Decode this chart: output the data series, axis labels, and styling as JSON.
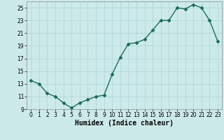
{
  "x": [
    0,
    1,
    2,
    3,
    4,
    5,
    6,
    7,
    8,
    9,
    10,
    11,
    12,
    13,
    14,
    15,
    16,
    17,
    18,
    19,
    20,
    21,
    22,
    23
  ],
  "y": [
    13.5,
    13.0,
    11.5,
    11.0,
    10.0,
    9.2,
    10.0,
    10.5,
    11.0,
    11.2,
    14.5,
    17.2,
    19.3,
    19.5,
    20.0,
    21.5,
    23.0,
    23.0,
    25.0,
    24.8,
    25.5,
    25.0,
    23.0,
    19.7
  ],
  "line_color": "#1a6b5a",
  "marker": "D",
  "marker_size": 2.5,
  "background_color": "#cdeaea",
  "grid_color": "#b0d8d8",
  "xlabel": "Humidex (Indice chaleur)",
  "xlim": [
    -0.5,
    23.5
  ],
  "ylim": [
    9,
    26
  ],
  "yticks": [
    9,
    11,
    13,
    15,
    17,
    19,
    21,
    23,
    25
  ],
  "xticks": [
    0,
    1,
    2,
    3,
    4,
    5,
    6,
    7,
    8,
    9,
    10,
    11,
    12,
    13,
    14,
    15,
    16,
    17,
    18,
    19,
    20,
    21,
    22,
    23
  ],
  "tick_fontsize": 5.5,
  "xlabel_fontsize": 7,
  "linewidth": 1.0
}
